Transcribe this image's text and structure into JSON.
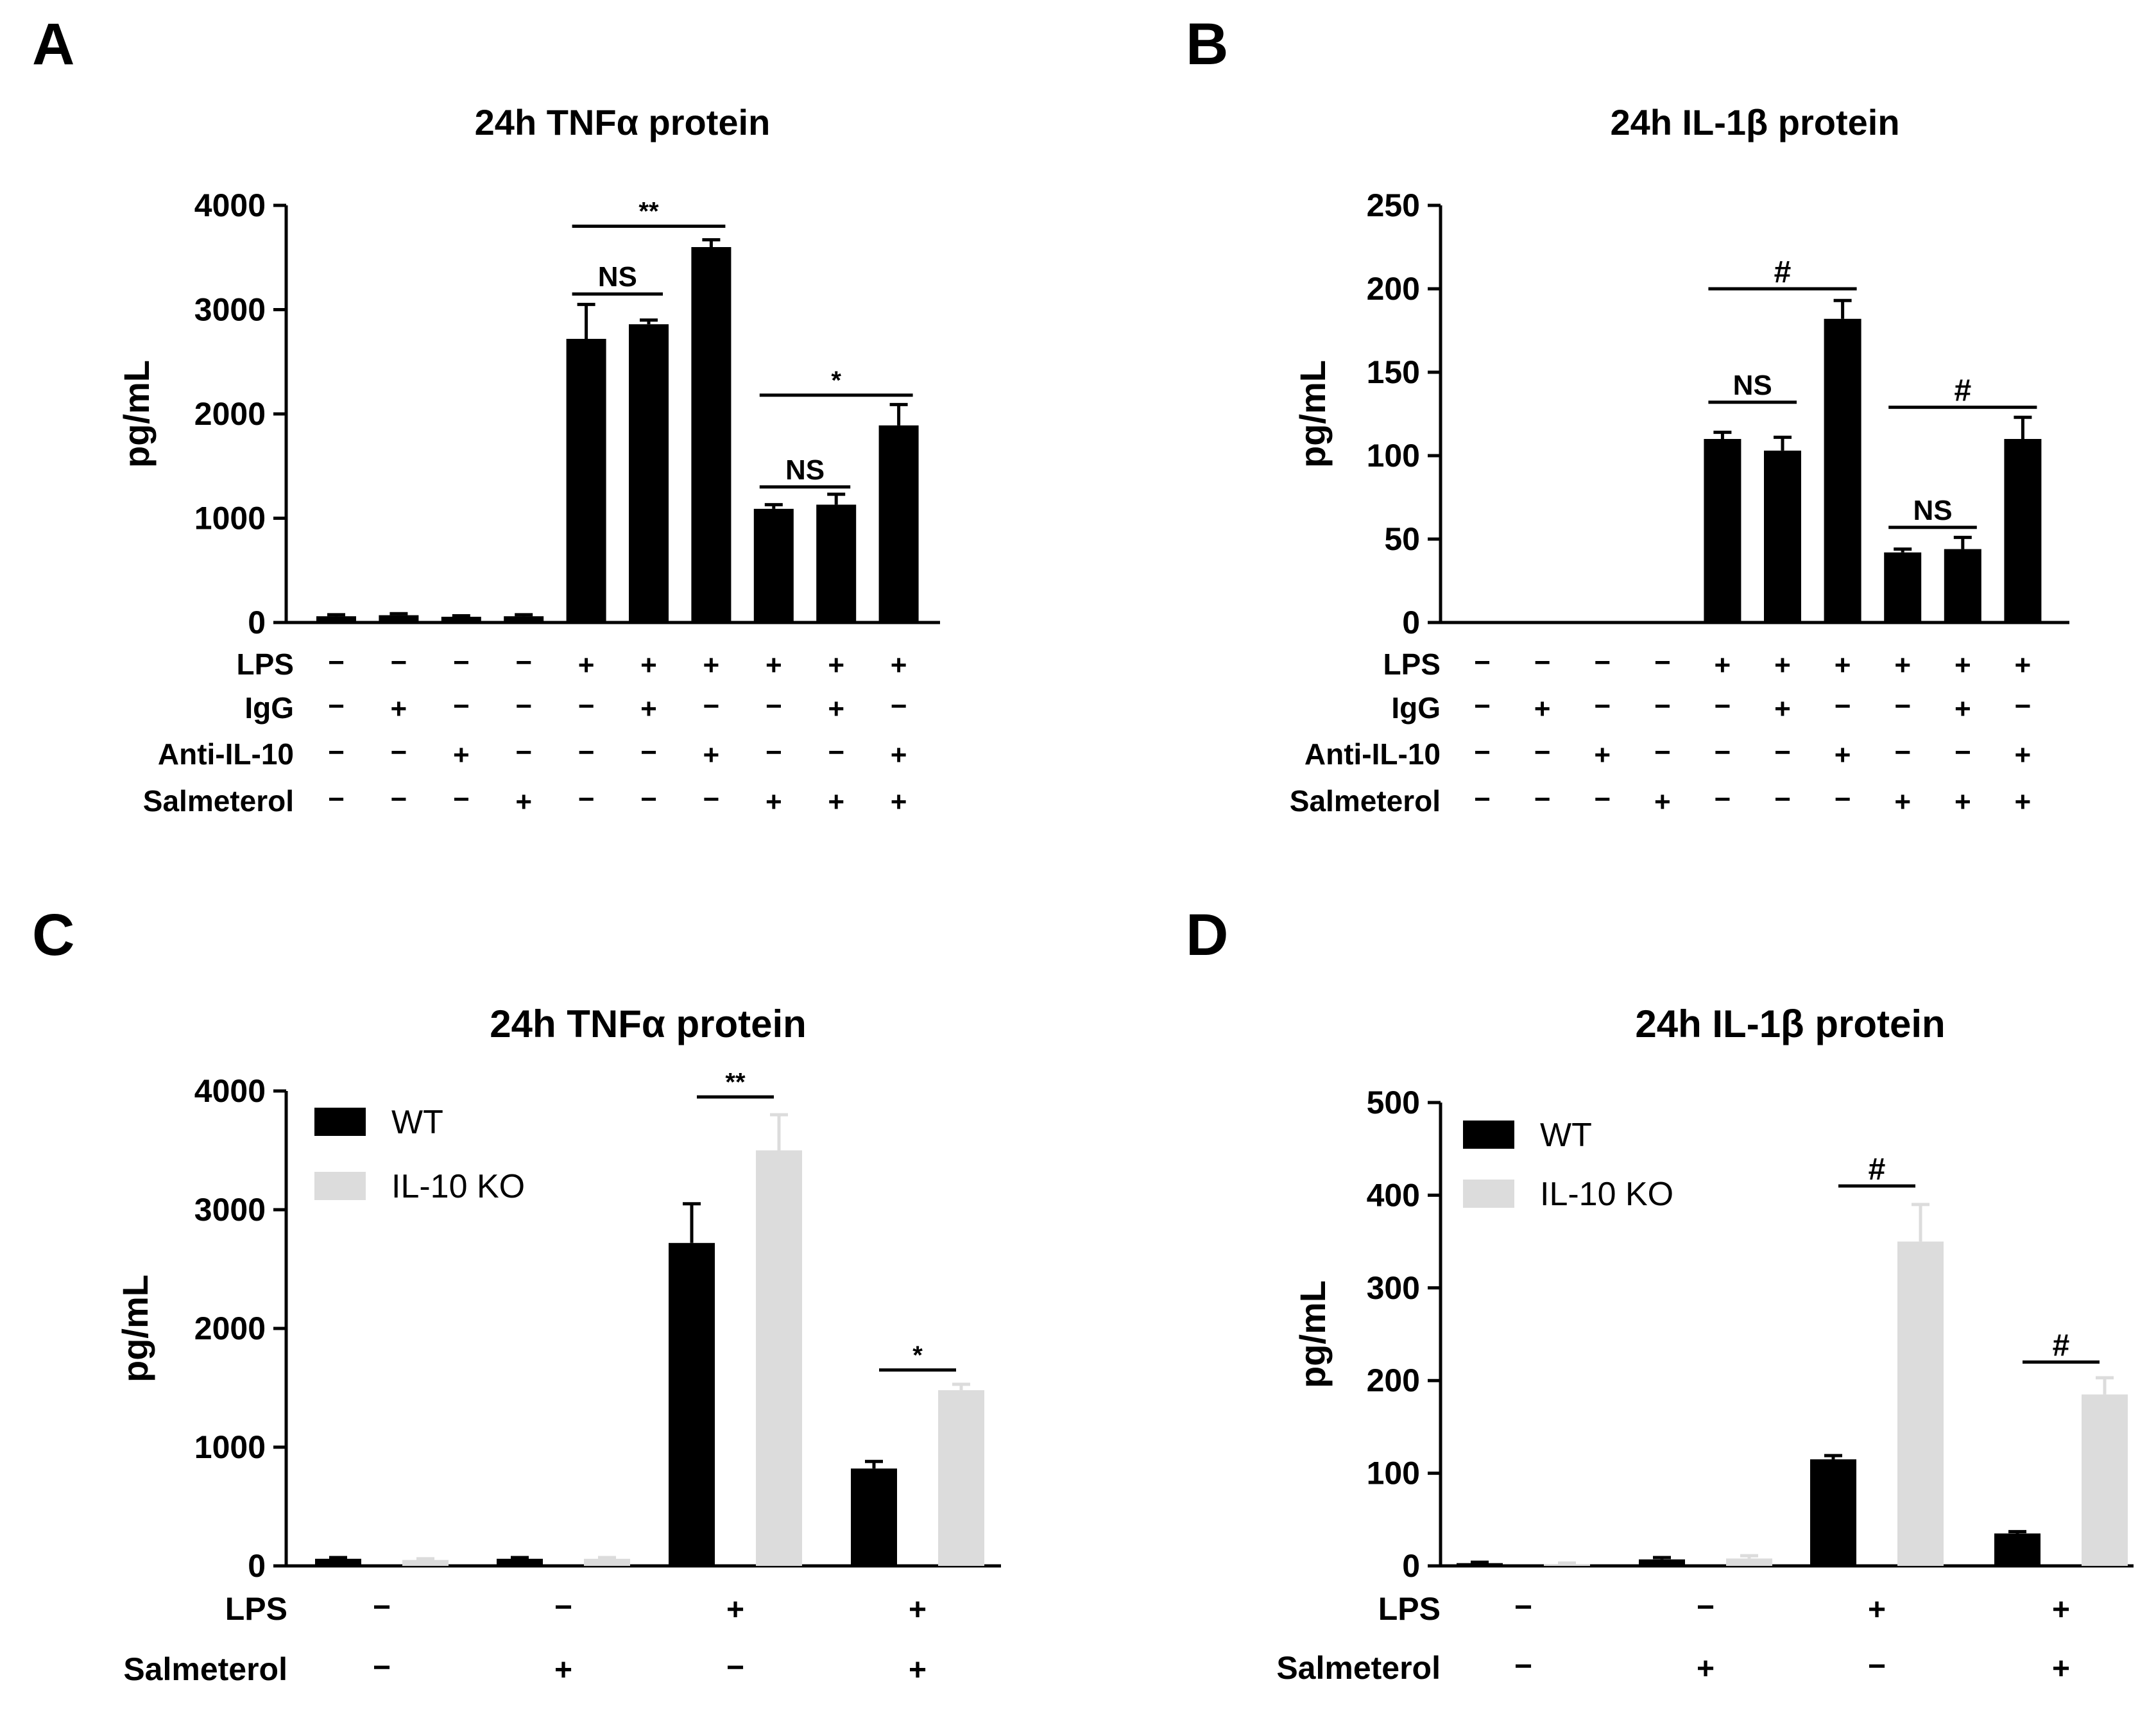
{
  "figure_colors": {
    "wt": "#000000",
    "ko": "#dcdcdc",
    "axis": "#000000"
  },
  "chart_data": [
    {
      "panel": "A",
      "type": "bar",
      "title": "24h TNFα protein",
      "ylabel": "pg/mL",
      "ylim": [
        0,
        4000
      ],
      "yticks": [
        0,
        1000,
        2000,
        3000,
        4000
      ],
      "values": [
        60,
        70,
        55,
        60,
        2720,
        2860,
        3600,
        1090,
        1130,
        1890
      ],
      "errors": [
        15,
        15,
        10,
        15,
        330,
        40,
        70,
        40,
        100,
        200
      ],
      "conditions": [
        {
          "label": "LPS",
          "signs": [
            "−",
            "−",
            "−",
            "−",
            "+",
            "+",
            "+",
            "+",
            "+",
            "+"
          ]
        },
        {
          "label": "IgG",
          "signs": [
            "−",
            "+",
            "−",
            "−",
            "−",
            "+",
            "−",
            "−",
            "+",
            "−"
          ]
        },
        {
          "label": "Anti-IL-10",
          "signs": [
            "−",
            "−",
            "+",
            "−",
            "−",
            "−",
            "+",
            "−",
            "−",
            "+"
          ]
        },
        {
          "label": "Salmeterol",
          "signs": [
            "−",
            "−",
            "−",
            "+",
            "−",
            "−",
            "−",
            "+",
            "+",
            "+"
          ]
        }
      ],
      "annotations": [
        {
          "text": "**",
          "from": 4,
          "to": 6,
          "y": 3800
        },
        {
          "text": "NS",
          "from": 4,
          "to": 5,
          "y": 3150
        },
        {
          "text": "*",
          "from": 7,
          "to": 9,
          "y": 2180
        },
        {
          "text": "NS",
          "from": 7,
          "to": 8,
          "y": 1300
        }
      ]
    },
    {
      "panel": "B",
      "type": "bar",
      "title": "24h IL-1β protein",
      "ylabel": "pg/mL",
      "ylim": [
        0,
        250
      ],
      "yticks": [
        0,
        50,
        100,
        150,
        200,
        250
      ],
      "values": [
        0,
        0,
        0,
        0,
        110,
        103,
        182,
        42,
        44,
        110
      ],
      "errors": [
        0,
        0,
        0,
        0,
        4,
        8,
        11,
        2,
        7,
        13
      ],
      "conditions": [
        {
          "label": "LPS",
          "signs": [
            "−",
            "−",
            "−",
            "−",
            "+",
            "+",
            "+",
            "+",
            "+",
            "+"
          ]
        },
        {
          "label": "IgG",
          "signs": [
            "−",
            "+",
            "−",
            "−",
            "−",
            "+",
            "−",
            "−",
            "+",
            "−"
          ]
        },
        {
          "label": "Anti-IL-10",
          "signs": [
            "−",
            "−",
            "+",
            "−",
            "−",
            "−",
            "+",
            "−",
            "−",
            "+"
          ]
        },
        {
          "label": "Salmeterol",
          "signs": [
            "−",
            "−",
            "−",
            "+",
            "−",
            "−",
            "−",
            "+",
            "+",
            "+"
          ]
        }
      ],
      "annotations": [
        {
          "text": "#",
          "from": 4,
          "to": 6,
          "y": 200
        },
        {
          "text": "NS",
          "from": 4,
          "to": 5,
          "y": 132
        },
        {
          "text": "#",
          "from": 7,
          "to": 9,
          "y": 129
        },
        {
          "text": "NS",
          "from": 7,
          "to": 8,
          "y": 57
        }
      ]
    },
    {
      "panel": "C",
      "type": "bar",
      "title": "24h TNFα protein",
      "ylabel": "pg/mL",
      "ylim": [
        0,
        4000
      ],
      "yticks": [
        0,
        1000,
        2000,
        3000,
        4000
      ],
      "series": [
        {
          "name": "WT",
          "values": [
            60,
            60,
            2720,
            820
          ],
          "errors": [
            10,
            10,
            330,
            60
          ]
        },
        {
          "name": "IL-10 KO",
          "values": [
            50,
            60,
            3500,
            1480
          ],
          "errors": [
            10,
            10,
            300,
            50
          ]
        }
      ],
      "conditions": [
        {
          "label": "LPS",
          "signs": [
            "−",
            "−",
            "+",
            "+"
          ]
        },
        {
          "label": "Salmeterol",
          "signs": [
            "−",
            "+",
            "−",
            "+"
          ]
        }
      ],
      "annotations": [
        {
          "text": "**",
          "group": 2,
          "y": 3950
        },
        {
          "text": "*",
          "group": 3,
          "y": 1650
        }
      ]
    },
    {
      "panel": "D",
      "type": "bar",
      "title": "24h IL-1β protein",
      "ylabel": "pg/mL",
      "ylim": [
        0,
        500
      ],
      "yticks": [
        0,
        100,
        200,
        300,
        400,
        500
      ],
      "series": [
        {
          "name": "WT",
          "values": [
            3,
            7,
            115,
            35
          ],
          "errors": [
            1,
            2,
            4,
            2
          ]
        },
        {
          "name": "IL-10 KO",
          "values": [
            2,
            8,
            350,
            185
          ],
          "errors": [
            1,
            3,
            40,
            18
          ]
        }
      ],
      "conditions": [
        {
          "label": "LPS",
          "signs": [
            "−",
            "−",
            "+",
            "+"
          ]
        },
        {
          "label": "Salmeterol",
          "signs": [
            "−",
            "+",
            "−",
            "+"
          ]
        }
      ],
      "annotations": [
        {
          "text": "#",
          "group": 2,
          "y": 410
        },
        {
          "text": "#",
          "group": 3,
          "y": 220
        }
      ]
    }
  ]
}
